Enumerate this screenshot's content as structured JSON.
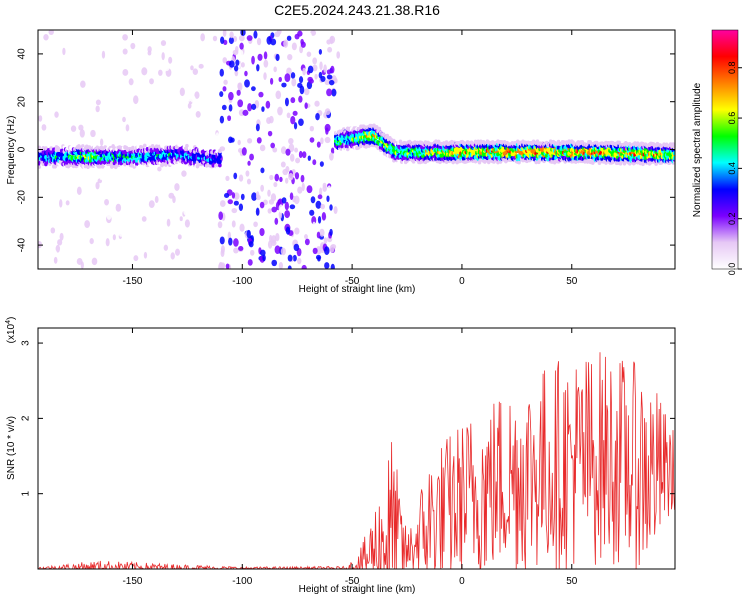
{
  "title": "C2E5.2024.243.21.38.R16",
  "chart_data": [
    {
      "type": "heatmap",
      "xlabel": "Height of straight line (km)",
      "ylabel": "Frequency (Hz)",
      "xlim": [
        -193,
        97
      ],
      "ylim": [
        -50,
        50
      ],
      "xticks": [
        -150,
        -100,
        -50,
        0,
        50
      ],
      "yticks": [
        -40,
        -20,
        0,
        20,
        40
      ],
      "colorbar": {
        "label": "Normalized spectral amplitude",
        "range": [
          0,
          0.95
        ],
        "ticks": [
          "0.0",
          "0.2",
          "0.4",
          "0.6",
          "0.8"
        ],
        "tick_values": [
          0,
          0.2,
          0.4,
          0.6,
          0.8
        ],
        "colors": [
          "#ffffff",
          "#e6c8f5",
          "#7a00ff",
          "#0000ff",
          "#00ffff",
          "#00ff00",
          "#ffff00",
          "#ff8000",
          "#ff0000",
          "#ff00a0"
        ]
      },
      "ridge": [
        {
          "x": -190,
          "freq": -3,
          "amp": 0.45
        },
        {
          "x": -170,
          "freq": -3,
          "amp": 0.6
        },
        {
          "x": -150,
          "freq": -3,
          "amp": 0.5
        },
        {
          "x": -130,
          "freq": -2,
          "amp": 0.45
        },
        {
          "x": -113,
          "freq": -4,
          "amp": 0.4
        },
        {
          "x": -55,
          "freq": 4,
          "amp": 0.55
        },
        {
          "x": -40,
          "freq": 6,
          "amp": 0.7
        },
        {
          "x": -30,
          "freq": -1,
          "amp": 0.6
        },
        {
          "x": 0,
          "freq": -1,
          "amp": 0.75
        },
        {
          "x": 50,
          "freq": -1,
          "amp": 0.8
        },
        {
          "x": 95,
          "freq": -2,
          "amp": 0.7
        }
      ],
      "noise_regions": [
        {
          "x_from": -193,
          "x_to": -55,
          "density": 0.35,
          "amp": 0.15
        },
        {
          "x_from": -110,
          "x_to": -58,
          "density": 0.9,
          "amp": 0.35
        }
      ]
    },
    {
      "type": "line",
      "xlabel": "Height of straight line (km)",
      "ylabel": "SNR (10 * v/v)",
      "y_multiplier": "(x10",
      "y_multiplier_exp": "4",
      "xlim": [
        -193,
        97
      ],
      "ylim": [
        0,
        3.2
      ],
      "xticks": [
        -150,
        -100,
        -50,
        0,
        50
      ],
      "yticks": [
        1,
        2,
        3
      ],
      "color": "#e8292a",
      "envelope": [
        {
          "x": -193,
          "base": 0.01,
          "amp": 0.02
        },
        {
          "x": -165,
          "base": 0.03,
          "amp": 0.1
        },
        {
          "x": -135,
          "base": 0.02,
          "amp": 0.06
        },
        {
          "x": -100,
          "base": 0.01,
          "amp": 0.02
        },
        {
          "x": -52,
          "base": 0.01,
          "amp": 0.03
        },
        {
          "x": -45,
          "base": 0.1,
          "amp": 0.3
        },
        {
          "x": -38,
          "base": 0.3,
          "amp": 0.9
        },
        {
          "x": -32,
          "base": 0.5,
          "amp": 1.55
        },
        {
          "x": -25,
          "base": 0.2,
          "amp": 0.3
        },
        {
          "x": -15,
          "base": 0.6,
          "amp": 1.1
        },
        {
          "x": 0,
          "base": 0.9,
          "amp": 1.3
        },
        {
          "x": 20,
          "base": 1.2,
          "amp": 1.5
        },
        {
          "x": 45,
          "base": 1.4,
          "amp": 1.7
        },
        {
          "x": 65,
          "base": 1.5,
          "amp": 1.7
        },
        {
          "x": 85,
          "base": 1.3,
          "amp": 1.6
        },
        {
          "x": 97,
          "base": 1.3,
          "amp": 0.6
        }
      ]
    }
  ]
}
